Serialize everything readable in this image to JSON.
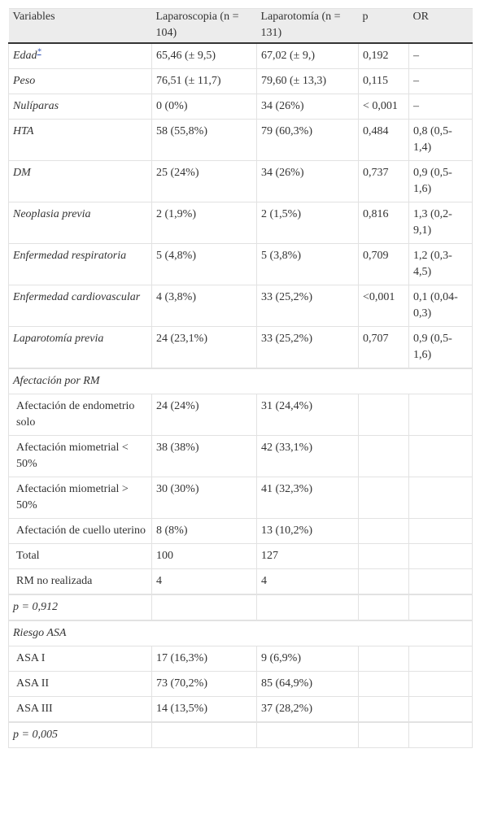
{
  "table": {
    "header": [
      "Variables",
      "Laparoscopia (n = 104)",
      "Laparotomía (n = 131)",
      "p",
      "OR"
    ],
    "footnote_mark": "*",
    "main_rows": [
      [
        "Edad",
        "65,46 (± 9,5)",
        "67,02 (± 9,)",
        "0,192",
        "–"
      ],
      [
        "Peso",
        "76,51 (± 11,7)",
        "79,60 (± 13,3)",
        "0,115",
        "–"
      ],
      [
        "Nulíparas",
        "0 (0%)",
        "34 (26%)",
        "< 0,001",
        "–"
      ],
      [
        "HTA",
        "58 (55,8%)",
        "79 (60,3%)",
        "0,484",
        "0,8 (0,5-1,4)"
      ],
      [
        "DM",
        "25 (24%)",
        "34 (26%)",
        "0,737",
        "0,9 (0,5-1,6)"
      ],
      [
        "Neoplasia previa",
        "2 (1,9%)",
        "2 (1,5%)",
        "0,816",
        "1,3 (0,2-9,1)"
      ],
      [
        "Enfermedad respiratoria",
        "5 (4,8%)",
        "5 (3,8%)",
        "0,709",
        "1,2 (0,3-4,5)"
      ],
      [
        "Enfermedad cardiovascular",
        "4 (3,8%)",
        "33 (25,2%)",
        "<0,001",
        "0,1 (0,04-0,3)"
      ],
      [
        "Laparotomía previa",
        "24 (23,1%)",
        "33 (25,2%)",
        "0,707",
        "0,9 (0,5-1,6)"
      ]
    ],
    "sections": [
      {
        "title": "Afectación por RM",
        "rows": [
          [
            "Afectación de endometrio solo",
            "24 (24%)",
            "31 (24,4%)"
          ],
          [
            "Afectación miometrial < 50%",
            "38 (38%)",
            "42 (33,1%)"
          ],
          [
            "Afectación miometrial > 50%",
            "30 (30%)",
            "41 (32,3%)"
          ],
          [
            "Afectación de cuello uterino",
            "8 (8%)",
            "13 (10,2%)"
          ],
          [
            "Total",
            "100",
            "127"
          ],
          [
            "RM no realizada",
            "4",
            "4"
          ]
        ],
        "p": "p = 0,912"
      },
      {
        "title": "Riesgo ASA",
        "rows": [
          [
            "ASA I",
            "17 (16,3%)",
            "9 (6,9%)"
          ],
          [
            "ASA II",
            "73 (70,2%)",
            "85 (64,9%)"
          ],
          [
            "ASA III",
            "14 (13,5%)",
            "37 (28,2%)"
          ]
        ],
        "p": "p = 0,005"
      }
    ]
  }
}
